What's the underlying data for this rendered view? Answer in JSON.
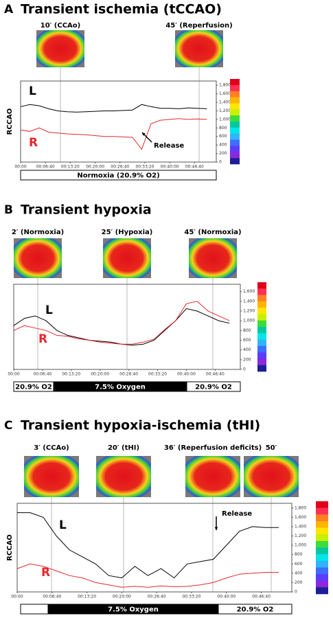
{
  "chart_data": [
    {
      "type": "line",
      "panel": "A",
      "title": "Transient ischemia (tCCAO)",
      "ylabel": "RCCAO",
      "images": [
        "10′ (CCAo)",
        "45′ (Reperfusion)"
      ],
      "conditions": [
        "Normoxia (20.9% O2)"
      ],
      "annotation": "Release",
      "x": [
        0,
        150,
        300,
        450,
        600,
        750,
        900,
        1050,
        1200,
        1350,
        1500,
        1650,
        1800,
        1950,
        2100,
        2250,
        2400,
        2550,
        2700,
        2850,
        3000
      ],
      "series": [
        {
          "name": "L",
          "color": "#000000",
          "values": [
            1300,
            1350,
            1320,
            1250,
            1200,
            1180,
            1170,
            1180,
            1190,
            1200,
            1200,
            1210,
            1220,
            1350,
            1300,
            1260,
            1260,
            1250,
            1270,
            1260,
            1250
          ]
        },
        {
          "name": "R",
          "color": "#e8262a",
          "values": [
            750,
            720,
            800,
            700,
            680,
            660,
            650,
            640,
            620,
            600,
            600,
            590,
            580,
            300,
            900,
            980,
            1000,
            1020,
            1000,
            1010,
            1000
          ]
        }
      ],
      "xlim": [
        0,
        3150
      ],
      "xticks": [
        {
          "value": 0,
          "label": "00:00"
        },
        {
          "value": 400,
          "label": "00:06:40"
        },
        {
          "value": 800,
          "label": "00:13:20"
        },
        {
          "value": 1200,
          "label": "00:20:00"
        },
        {
          "value": 1600,
          "label": "00:26:40"
        },
        {
          "value": 2000,
          "label": "00:33:20"
        },
        {
          "value": 2400,
          "label": "00:40:00"
        },
        {
          "value": 2800,
          "label": "00:46:40"
        }
      ],
      "ylim": [
        0,
        1900
      ],
      "yticks": [
        0,
        200,
        400,
        600,
        800,
        {
          "value": 1000,
          "label": "1,000"
        },
        {
          "value": 1200,
          "label": "1,200"
        },
        {
          "value": 1400,
          "label": "1,400"
        },
        {
          "value": 1600,
          "label": "1,600"
        },
        {
          "value": 1800,
          "label": "1,800"
        }
      ]
    },
    {
      "type": "line",
      "panel": "B",
      "title": "Transient hypoxia",
      "images": [
        "2′ (Normoxia)",
        "25′ (Hypoxia)",
        "45′ (Normoxia)"
      ],
      "conditions": [
        "20.9% O2",
        "7.5% Oxygen",
        "20.9% O2"
      ],
      "x": [
        0,
        150,
        300,
        450,
        600,
        750,
        900,
        1050,
        1200,
        1350,
        1500,
        1650,
        1800,
        1950,
        2100,
        2250,
        2400,
        2550,
        2700,
        2850,
        3000
      ],
      "series": [
        {
          "name": "L",
          "color": "#000000",
          "values": [
            900,
            1050,
            1100,
            1000,
            800,
            700,
            650,
            600,
            580,
            560,
            520,
            500,
            520,
            600,
            800,
            1000,
            1250,
            1200,
            1100,
            1000,
            950
          ]
        },
        {
          "name": "R",
          "color": "#e8262a",
          "values": [
            800,
            900,
            850,
            800,
            700,
            680,
            630,
            600,
            560,
            540,
            520,
            520,
            560,
            620,
            820,
            1000,
            1350,
            1400,
            1200,
            1100,
            1000
          ]
        }
      ],
      "xlim": [
        0,
        3150
      ],
      "xticks": [
        {
          "value": 0,
          "label": "00:00"
        },
        {
          "value": 400,
          "label": "00:06:40"
        },
        {
          "value": 800,
          "label": "00:13:20"
        },
        {
          "value": 1200,
          "label": "00:20:00"
        },
        {
          "value": 1600,
          "label": "00:26:40"
        },
        {
          "value": 2000,
          "label": "00:33:20"
        },
        {
          "value": 2400,
          "label": "00:40:00"
        },
        {
          "value": 2800,
          "label": "00:46:40"
        }
      ],
      "ylim": [
        0,
        1750
      ],
      "yticks": [
        0,
        200,
        400,
        600,
        800,
        {
          "value": 1000,
          "label": "1,000"
        },
        {
          "value": 1200,
          "label": "1,200"
        },
        {
          "value": 1400,
          "label": "1,400"
        },
        {
          "value": 1600,
          "label": "1,600"
        }
      ]
    },
    {
      "type": "line",
      "panel": "C",
      "title": "Transient hypoxia-ischemia (tHI)",
      "ylabel": "RCCAO",
      "images": [
        "3′ (CCAo)",
        "20′ (tHI)",
        "36′ (Reperfusion deficits)",
        "50′"
      ],
      "conditions": [
        "7.5% Oxygen",
        "20.9% O2"
      ],
      "annotation": "Release",
      "x": [
        0,
        150,
        300,
        450,
        600,
        750,
        900,
        1050,
        1200,
        1350,
        1500,
        1650,
        1800,
        1950,
        2100,
        2250,
        2400,
        2550,
        2700,
        2850,
        3000
      ],
      "series": [
        {
          "name": "L",
          "color": "#000000",
          "values": [
            1700,
            1700,
            1600,
            1200,
            900,
            750,
            600,
            350,
            300,
            550,
            350,
            500,
            300,
            600,
            650,
            700,
            1000,
            1300,
            1400,
            1380,
            1380
          ]
        },
        {
          "name": "R",
          "color": "#e8262a",
          "values": [
            500,
            600,
            550,
            450,
            350,
            300,
            200,
            150,
            100,
            120,
            100,
            130,
            110,
            120,
            150,
            200,
            300,
            380,
            400,
            420,
            420
          ]
        }
      ],
      "xlim": [
        0,
        3150
      ],
      "xticks": [
        {
          "value": 0,
          "label": "00:00"
        },
        {
          "value": 400,
          "label": "00:06:40"
        },
        {
          "value": 800,
          "label": "00:13:20"
        },
        {
          "value": 1200,
          "label": "00:20:00"
        },
        {
          "value": 1600,
          "label": "00:26:40"
        },
        {
          "value": 2000,
          "label": "00:33:20"
        },
        {
          "value": 2400,
          "label": "00:40:00"
        },
        {
          "value": 2800,
          "label": "00:46:40"
        }
      ],
      "ylim": [
        0,
        1900
      ],
      "yticks": [
        0,
        200,
        400,
        600,
        800,
        {
          "value": 1000,
          "label": "1,000"
        },
        {
          "value": 1200,
          "label": "1,200"
        },
        {
          "value": 1400,
          "label": "1,400"
        },
        {
          "value": 1600,
          "label": "1,600"
        },
        {
          "value": 1800,
          "label": "1,800"
        }
      ]
    }
  ]
}
